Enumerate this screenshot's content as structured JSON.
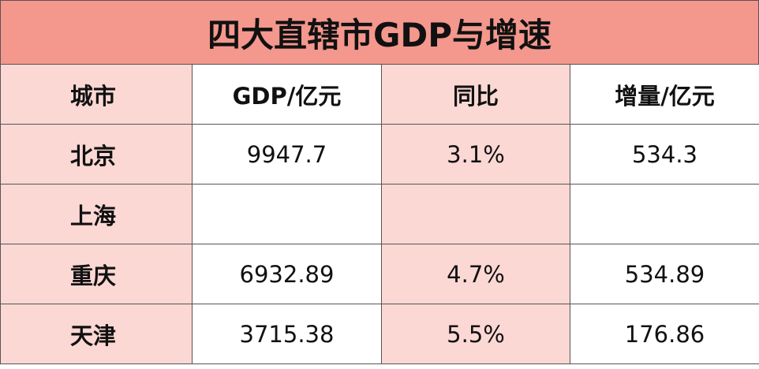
{
  "title": "四大直辖市GDP与增速",
  "table": {
    "header": [
      "城市",
      "GDP/亿元",
      "同比",
      "增量/亿元"
    ],
    "rows": [
      [
        "北京",
        "9947.7",
        "3.1%",
        "534.3"
      ],
      [
        "上海",
        null,
        null,
        null
      ],
      [
        "重庆",
        "6932.89",
        "4.7%",
        "534.89"
      ],
      [
        "天津",
        "3715.38",
        "5.5%",
        "176.86"
      ]
    ]
  }
}
